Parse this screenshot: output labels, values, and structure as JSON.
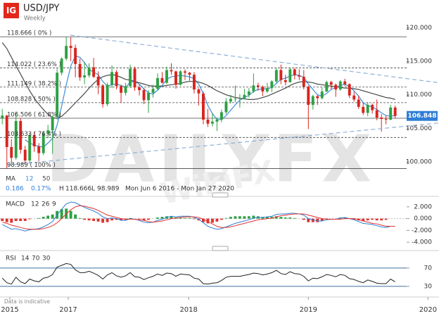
{
  "header": {
    "logo": "IG",
    "symbol": "USD/JPY",
    "interval": "Weekly"
  },
  "info": {
    "ma_label": "MA",
    "change": "0.186",
    "change_pct": "0.17%",
    "high_label": "H",
    "high": "118.666",
    "low_label": "L",
    "low": "98.989",
    "range": "Mon Jun 6 2016 - Mon Jan 27 2020"
  },
  "watermark": {
    "brand": "DAILYFX",
    "mark": "WikiFX"
  },
  "footnote": "Data is indicative",
  "chart_data": [
    {
      "type": "candlestick",
      "xlim": [
        -0.5,
        95.6
      ],
      "ylim": [
        96,
        121
      ],
      "yticks": [
        {
          "value": 100,
          "label": "100.000"
        },
        {
          "value": 105,
          "label": "105.000"
        },
        {
          "value": 110,
          "label": "110.000"
        },
        {
          "value": 115,
          "label": "115.000"
        },
        {
          "value": 120,
          "label": "120.000"
        }
      ],
      "up_color": "#2ea043",
      "down_color": "#d9241e",
      "last_price": 106.848,
      "last_price_color": "#2f7ed8",
      "open": [
        106.5,
        106.9,
        102.2,
        100.6,
        106.1,
        101.8,
        100.2,
        104.0,
        102.3,
        101.3,
        104.2,
        104.7,
        106.7,
        113.3,
        115.4,
        117.3,
        117.0,
        114.6,
        112.6,
        112.9,
        114.1,
        112.7,
        111.4,
        108.6,
        111.5,
        113.4,
        111.3,
        110.3,
        111.3,
        113.9,
        111.1,
        110.7,
        109.2,
        110.3,
        110.9,
        112.5,
        111.8,
        113.7,
        113.5,
        111.5,
        113.5,
        113.3,
        113.0,
        110.8,
        110.2,
        106.3,
        105.7,
        106.0,
        106.3,
        107.4,
        109.0,
        109.4,
        109.4,
        109.5,
        110.0,
        110.5,
        111.4,
        111.2,
        110.5,
        111.0,
        112.0,
        113.7,
        112.2,
        111.9,
        113.8,
        112.9,
        112.7,
        111.2,
        108.5,
        109.8,
        109.5,
        110.5,
        111.9,
        111.5,
        110.8,
        112.0,
        111.6,
        109.9,
        109.3,
        108.2,
        107.3,
        108.5,
        107.7,
        106.6,
        106.4,
        106.3,
        108.1
      ],
      "high": [
        107.9,
        107.0,
        103.4,
        107.5,
        106.5,
        102.4,
        104.3,
        104.5,
        102.8,
        104.6,
        105.5,
        106.9,
        113.9,
        115.6,
        118.666,
        118.6,
        117.5,
        115.4,
        114.9,
        114.7,
        115.5,
        113.5,
        111.6,
        111.8,
        114.4,
        113.7,
        111.5,
        111.8,
        114.5,
        114.2,
        111.5,
        111.0,
        110.7,
        111.5,
        113.2,
        113.4,
        114.2,
        114.7,
        113.6,
        113.7,
        113.8,
        113.4,
        113.4,
        111.0,
        110.5,
        107.9,
        107.3,
        106.6,
        107.8,
        109.5,
        110.0,
        111.4,
        110.1,
        110.9,
        111.0,
        113.2,
        111.8,
        111.4,
        111.8,
        112.2,
        114.0,
        114.5,
        113.0,
        114.1,
        114.0,
        113.8,
        113.7,
        111.4,
        110.0,
        110.0,
        111.1,
        112.1,
        112.1,
        111.7,
        112.2,
        112.4,
        111.7,
        110.5,
        109.9,
        108.8,
        108.9,
        108.7,
        109.3,
        107.1,
        106.9,
        108.5,
        108.4
      ],
      "low": [
        105.6,
        98.989,
        99.9,
        100.3,
        101.2,
        99.6,
        99.9,
        101.5,
        100.1,
        101.0,
        103.5,
        101.2,
        106.3,
        112.9,
        115.1,
        115.0,
        112.6,
        112.1,
        111.6,
        112.6,
        112.5,
        110.1,
        108.1,
        108.3,
        111.0,
        110.8,
        108.8,
        109.9,
        111.0,
        110.6,
        109.9,
        108.6,
        107.3,
        109.6,
        110.6,
        111.7,
        111.6,
        113.0,
        110.9,
        111.4,
        112.2,
        112.1,
        110.2,
        108.4,
        105.6,
        105.2,
        105.3,
        104.6,
        105.9,
        107.1,
        108.7,
        108.9,
        108.1,
        109.3,
        109.6,
        110.3,
        110.6,
        109.8,
        110.3,
        110.4,
        111.8,
        111.6,
        111.4,
        111.8,
        112.3,
        112.2,
        110.8,
        104.9,
        107.8,
        108.5,
        109.3,
        110.4,
        110.8,
        109.7,
        110.6,
        111.3,
        109.5,
        109.0,
        107.9,
        107.0,
        106.8,
        107.2,
        106.2,
        104.5,
        105.6,
        106.2,
        106.5
      ],
      "close": [
        106.9,
        102.2,
        100.6,
        106.1,
        101.8,
        100.2,
        104.0,
        102.3,
        101.3,
        104.2,
        104.7,
        106.7,
        113.3,
        115.4,
        117.3,
        117.0,
        114.6,
        112.6,
        112.9,
        114.1,
        112.7,
        111.4,
        108.6,
        111.5,
        113.4,
        111.3,
        110.3,
        111.3,
        113.9,
        111.1,
        110.7,
        109.2,
        110.3,
        110.9,
        112.5,
        111.8,
        113.7,
        113.5,
        111.5,
        113.5,
        113.3,
        113.0,
        110.8,
        110.2,
        106.3,
        105.7,
        106.0,
        106.3,
        107.4,
        109.0,
        109.4,
        109.4,
        109.5,
        110.0,
        110.5,
        111.4,
        111.2,
        110.5,
        111.0,
        112.0,
        113.7,
        112.2,
        111.9,
        113.8,
        112.9,
        112.7,
        111.2,
        108.5,
        109.8,
        109.5,
        110.5,
        111.9,
        111.5,
        110.8,
        112.0,
        111.6,
        109.9,
        109.3,
        108.2,
        107.3,
        108.5,
        107.7,
        106.6,
        106.4,
        106.3,
        108.1,
        106.848
      ],
      "series": [
        {
          "name": "12",
          "color": "#3a8fd9",
          "values": [
            null,
            null,
            null,
            null,
            null,
            103.3,
            102.8,
            102.5,
            102.3,
            102.2,
            102.8,
            103.5,
            105.5,
            108.3,
            111.5,
            114.3,
            115.8,
            115.6,
            114.8,
            113.8,
            113.4,
            113.0,
            112.0,
            111.3,
            111.5,
            111.6,
            111.4,
            111.1,
            111.9,
            112.0,
            111.6,
            110.9,
            110.3,
            110.1,
            110.7,
            111.4,
            112.3,
            112.7,
            112.8,
            112.9,
            112.8,
            112.7,
            112.4,
            111.6,
            110.2,
            108.4,
            107.2,
            106.3,
            106.3,
            106.9,
            107.7,
            108.5,
            109.2,
            109.6,
            109.9,
            110.5,
            110.8,
            110.9,
            110.9,
            111.1,
            111.7,
            112.3,
            112.5,
            112.8,
            113.0,
            112.9,
            112.6,
            111.6,
            110.8,
            110.0,
            109.8,
            110.2,
            110.8,
            111.1,
            111.4,
            111.6,
            111.2,
            110.6,
            109.8,
            108.8,
            108.4,
            108.2,
            107.8,
            107.3,
            106.9,
            106.8,
            106.9
          ]
        },
        {
          "name": "50",
          "color": "#4a4a4a",
          "values": [
            117.8,
            116.9,
            115.6,
            114.3,
            113.1,
            111.8,
            110.6,
            109.5,
            108.6,
            107.8,
            107.1,
            106.6,
            106.5,
            106.8,
            107.4,
            108.1,
            108.8,
            109.5,
            110.2,
            111.0,
            111.7,
            112.3,
            112.7,
            112.9,
            113.0,
            112.9,
            112.6,
            112.3,
            112.2,
            112.0,
            111.8,
            111.6,
            111.4,
            111.3,
            111.3,
            111.3,
            111.4,
            111.5,
            111.6,
            111.7,
            111.9,
            112.0,
            112.0,
            111.9,
            111.7,
            111.4,
            111.0,
            110.6,
            110.3,
            110.0,
            109.8,
            109.6,
            109.5,
            109.4,
            109.3,
            109.3,
            109.4,
            109.6,
            109.8,
            110.1,
            110.4,
            110.7,
            111.0,
            111.4,
            111.7,
            111.9,
            112.0,
            111.9,
            111.8,
            111.6,
            111.5,
            111.4,
            111.3,
            111.2,
            111.1,
            111.0,
            111.0,
            110.9,
            110.8,
            110.6,
            110.4,
            110.2,
            110.0,
            109.8,
            109.6,
            109.5,
            109.3
          ]
        }
      ],
      "levels": [
        {
          "value": 118.666,
          "label": "118.666 ( 0% )",
          "style": "solid"
        },
        {
          "value": 114.022,
          "label": "114.022 ( 23.6% )",
          "style": "dashed"
        },
        {
          "value": 111.149,
          "label": "111.149 ( 38.2% )",
          "style": "dashed"
        },
        {
          "value": 108.828,
          "label": "108.828 ( 50% )",
          "style": "dashed"
        },
        {
          "value": 106.506,
          "label": "106.506 ( 61.8% )",
          "style": "solid"
        },
        {
          "value": 103.633,
          "label": "103.633 ( 76.4% )",
          "style": "dashed"
        },
        {
          "value": 98.989,
          "label": "98.989 ( 100% )",
          "style": "solid"
        }
      ],
      "level_color": "#444",
      "trendlines": [
        {
          "from": [
            14.9,
            118.9
          ],
          "to": [
            95.6,
            111.8
          ],
          "color": "#8fb0d8"
        },
        {
          "from": [
            1,
            99.5
          ],
          "to": [
            95.6,
            105.8
          ],
          "color": "#8fb0d8"
        }
      ]
    },
    {
      "type": "macd",
      "title": "MACD",
      "params": [
        12,
        26,
        9
      ],
      "ylim": [
        -4.7,
        3.3
      ],
      "yticks": [
        {
          "value": 2,
          "label": "2.000"
        },
        {
          "value": 0,
          "label": "0.000"
        },
        {
          "value": -2,
          "label": "-2.000"
        },
        {
          "value": -4,
          "label": "-4.000"
        }
      ],
      "macd_color": "#2f7ed8",
      "signal_color": "#e0332f",
      "up_color": "#2ea043",
      "down_color": "#e0332f",
      "macd": [
        -1.0,
        -1.4,
        -1.8,
        -1.7,
        -1.9,
        -2.1,
        -1.9,
        -1.8,
        -1.7,
        -1.4,
        -1.0,
        -0.5,
        0.6,
        1.6,
        2.5,
        2.8,
        2.7,
        2.3,
        1.9,
        1.6,
        1.3,
        0.9,
        0.3,
        0.0,
        0.1,
        0.0,
        -0.3,
        -0.3,
        0.0,
        -0.1,
        -0.3,
        -0.6,
        -0.7,
        -0.6,
        -0.3,
        -0.1,
        0.2,
        0.4,
        0.3,
        0.4,
        0.4,
        0.4,
        0.2,
        -0.1,
        -0.7,
        -1.3,
        -1.6,
        -1.8,
        -1.7,
        -1.4,
        -1.1,
        -0.8,
        -0.6,
        -0.4,
        -0.2,
        0.1,
        0.2,
        0.2,
        0.3,
        0.4,
        0.7,
        0.8,
        0.8,
        0.9,
        0.9,
        0.8,
        0.6,
        0.0,
        -0.2,
        -0.4,
        -0.4,
        -0.2,
        -0.1,
        -0.1,
        0.1,
        0.2,
        0.0,
        -0.2,
        -0.5,
        -0.8,
        -0.9,
        -1.0,
        -1.2,
        -1.4,
        -1.5,
        -1.3,
        -1.3
      ],
      "signal": [
        -0.6,
        -0.8,
        -1.1,
        -1.3,
        -1.5,
        -1.7,
        -1.8,
        -1.8,
        -1.8,
        -1.7,
        -1.5,
        -1.2,
        -0.7,
        0.0,
        0.8,
        1.5,
        2.0,
        2.2,
        2.1,
        1.9,
        1.7,
        1.4,
        1.0,
        0.6,
        0.4,
        0.2,
        0.0,
        -0.1,
        -0.1,
        -0.1,
        -0.2,
        -0.3,
        -0.5,
        -0.6,
        -0.5,
        -0.4,
        -0.2,
        0.0,
        0.1,
        0.2,
        0.3,
        0.3,
        0.3,
        0.2,
        -0.1,
        -0.5,
        -0.9,
        -1.3,
        -1.5,
        -1.5,
        -1.4,
        -1.2,
        -1.0,
        -0.8,
        -0.6,
        -0.4,
        -0.2,
        -0.1,
        0.0,
        0.1,
        0.3,
        0.5,
        0.6,
        0.7,
        0.8,
        0.8,
        0.8,
        0.6,
        0.4,
        0.2,
        0.0,
        -0.1,
        -0.1,
        -0.1,
        -0.1,
        0.0,
        0.0,
        0.0,
        -0.2,
        -0.4,
        -0.6,
        -0.8,
        -0.9,
        -1.1,
        -1.3,
        -1.3,
        -1.3
      ],
      "histogram": [
        -0.4,
        -0.6,
        -0.7,
        -0.4,
        -0.4,
        -0.4,
        -0.1,
        0.0,
        0.1,
        0.3,
        0.5,
        0.7,
        1.3,
        1.6,
        1.7,
        1.3,
        0.7,
        0.1,
        -0.2,
        -0.3,
        -0.4,
        -0.5,
        -0.7,
        -0.6,
        -0.3,
        -0.2,
        -0.3,
        -0.2,
        0.1,
        0.0,
        -0.1,
        -0.3,
        -0.2,
        0.0,
        0.2,
        0.3,
        0.4,
        0.4,
        0.2,
        0.2,
        0.1,
        0.1,
        -0.1,
        -0.3,
        -0.6,
        -0.8,
        -0.7,
        -0.5,
        -0.2,
        0.1,
        0.3,
        0.4,
        0.4,
        0.4,
        0.4,
        0.5,
        0.4,
        0.3,
        0.3,
        0.3,
        0.4,
        0.3,
        0.2,
        0.2,
        0.1,
        0.0,
        -0.2,
        -0.6,
        -0.6,
        -0.6,
        -0.4,
        -0.1,
        0.0,
        0.0,
        0.2,
        0.2,
        0.0,
        -0.2,
        -0.3,
        -0.4,
        -0.3,
        -0.2,
        -0.3,
        -0.3,
        -0.2,
        0.0,
        0.0
      ]
    },
    {
      "type": "line",
      "title": "RSI",
      "params": [
        14,
        70,
        30
      ],
      "ylim": [
        13,
        99
      ],
      "yticks": [
        70,
        30
      ],
      "color": "#222",
      "band_color": "#3d6f9e",
      "values": [
        48,
        38,
        35,
        50,
        40,
        36,
        46,
        42,
        40,
        48,
        50,
        56,
        72,
        76,
        80,
        78,
        66,
        60,
        60,
        63,
        59,
        54,
        46,
        55,
        60,
        53,
        50,
        53,
        60,
        51,
        50,
        45,
        49,
        52,
        57,
        54,
        59,
        58,
        52,
        57,
        56,
        55,
        48,
        46,
        36,
        35,
        37,
        38,
        43,
        50,
        52,
        52,
        52,
        54,
        56,
        59,
        58,
        55,
        57,
        60,
        65,
        58,
        56,
        62,
        58,
        57,
        52,
        42,
        48,
        47,
        51,
        56,
        54,
        51,
        56,
        54,
        47,
        45,
        41,
        38,
        44,
        41,
        37,
        36,
        36,
        46,
        40
      ],
      "xticks": [
        {
          "value": 1.66,
          "label": "2015"
        },
        {
          "value": 14.44,
          "label": "2017"
        },
        {
          "value": 40.8,
          "label": "2018"
        },
        {
          "value": 67.0,
          "label": "2019"
        },
        {
          "value": 93.2,
          "label": "2020"
        }
      ]
    }
  ]
}
